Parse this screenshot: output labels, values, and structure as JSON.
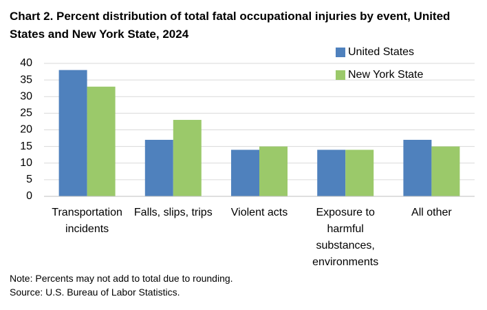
{
  "chart_data": {
    "type": "bar",
    "title": "Chart 2. Percent distribution of total fatal occupational injuries by event, United States and New York State, 2024",
    "categories": [
      "Transportation incidents",
      "Falls, slips, trips",
      "Violent acts",
      "Exposure to harmful substances, environments",
      "All other"
    ],
    "series": [
      {
        "name": "United States",
        "color": "#4f81bd",
        "values": [
          38,
          17,
          14,
          14,
          17
        ]
      },
      {
        "name": "New York State",
        "color": "#9bc96a",
        "values": [
          33,
          23,
          15,
          14,
          15
        ]
      }
    ],
    "ylim": [
      0,
      40
    ],
    "yticks": [
      0,
      5,
      10,
      15,
      20,
      25,
      30,
      35,
      40
    ],
    "grid": true,
    "legend": "top-right",
    "notes": [
      "Note: Percents may not add to total due to rounding.",
      "Source: U.S. Bureau of Labor Statistics."
    ]
  }
}
